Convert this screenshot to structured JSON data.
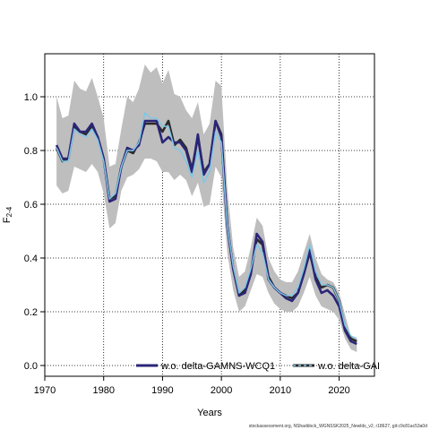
{
  "chart_data": {
    "type": "line",
    "xlabel": "Years",
    "ylabel_main": "F",
    "ylabel_sub": "2-4",
    "xlim": [
      1970,
      2026
    ],
    "ylim": [
      -0.04,
      1.16
    ],
    "x_ticks": [
      1970,
      1980,
      1990,
      2000,
      2010,
      2020
    ],
    "y_ticks": [
      0.0,
      0.2,
      0.4,
      0.6,
      0.8,
      1.0
    ],
    "y_tick_labels": [
      "0.0",
      "0.2",
      "0.4",
      "0.6",
      "0.8",
      "1.0"
    ],
    "grid": true,
    "legend_position": "bottom",
    "years": [
      1972,
      1973,
      1974,
      1975,
      1976,
      1977,
      1978,
      1979,
      1980,
      1981,
      1982,
      1983,
      1984,
      1985,
      1986,
      1987,
      1988,
      1989,
      1990,
      1991,
      1992,
      1993,
      1994,
      1995,
      1996,
      1997,
      1998,
      1999,
      2000,
      2001,
      2002,
      2003,
      2004,
      2005,
      2006,
      2007,
      2008,
      2009,
      2010,
      2011,
      2012,
      2013,
      2014,
      2015,
      2016,
      2017,
      2018,
      2019,
      2020,
      2021,
      2022,
      2023
    ],
    "band": {
      "color": "#bebebe",
      "upper": [
        1.0,
        0.92,
        0.93,
        1.06,
        1.03,
        1.02,
        1.07,
        1.0,
        0.92,
        0.74,
        0.75,
        0.88,
        1.0,
        0.98,
        1.03,
        1.12,
        1.09,
        1.11,
        1.05,
        1.1,
        1.01,
        1.0,
        0.95,
        0.92,
        0.98,
        0.86,
        0.9,
        1.06,
        1.04,
        0.66,
        0.44,
        0.33,
        0.35,
        0.44,
        0.55,
        0.52,
        0.4,
        0.35,
        0.32,
        0.31,
        0.31,
        0.35,
        0.42,
        0.49,
        0.4,
        0.34,
        0.32,
        0.31,
        0.27,
        0.19,
        0.11,
        0.1
      ],
      "lower": [
        0.67,
        0.64,
        0.65,
        0.74,
        0.73,
        0.72,
        0.75,
        0.72,
        0.64,
        0.51,
        0.53,
        0.65,
        0.7,
        0.71,
        0.73,
        0.77,
        0.77,
        0.76,
        0.72,
        0.72,
        0.69,
        0.71,
        0.69,
        0.63,
        0.68,
        0.59,
        0.6,
        0.74,
        0.7,
        0.42,
        0.28,
        0.2,
        0.22,
        0.28,
        0.34,
        0.33,
        0.27,
        0.23,
        0.21,
        0.2,
        0.2,
        0.22,
        0.27,
        0.33,
        0.26,
        0.22,
        0.21,
        0.2,
        0.17,
        0.1,
        0.06,
        0.05
      ]
    },
    "series": [
      {
        "name": "w.o. delta-GAMNS-WCQ1",
        "color": "#2b2577",
        "values": [
          0.82,
          0.77,
          0.77,
          0.9,
          0.87,
          0.87,
          0.9,
          0.85,
          0.77,
          0.61,
          0.62,
          0.74,
          0.81,
          0.8,
          0.82,
          0.91,
          0.91,
          0.91,
          0.83,
          0.85,
          0.83,
          0.83,
          0.8,
          0.72,
          0.86,
          0.71,
          0.75,
          0.91,
          0.85,
          0.52,
          0.36,
          0.26,
          0.27,
          0.34,
          0.49,
          0.46,
          0.32,
          0.29,
          0.27,
          0.25,
          0.24,
          0.27,
          0.34,
          0.43,
          0.32,
          0.27,
          0.28,
          0.26,
          0.22,
          0.13,
          0.09,
          0.08
        ]
      },
      {
        "name": "w.o. delta-GAI",
        "color": "#2a2a2a",
        "values": [
          0.81,
          0.76,
          0.77,
          0.89,
          0.87,
          0.86,
          0.89,
          0.85,
          0.77,
          0.62,
          0.63,
          0.74,
          0.8,
          0.79,
          0.83,
          0.9,
          0.9,
          0.9,
          0.87,
          0.91,
          0.82,
          0.84,
          0.81,
          0.73,
          0.85,
          0.72,
          0.75,
          0.91,
          0.86,
          0.52,
          0.36,
          0.26,
          0.28,
          0.35,
          0.47,
          0.45,
          0.33,
          0.29,
          0.27,
          0.26,
          0.25,
          0.27,
          0.34,
          0.42,
          0.33,
          0.29,
          0.3,
          0.29,
          0.24,
          0.14,
          0.1,
          0.09
        ]
      },
      {
        "name": "",
        "color": "#7fc6e8",
        "values": [
          0.81,
          0.76,
          0.76,
          0.88,
          0.86,
          0.85,
          0.88,
          0.84,
          0.76,
          0.62,
          0.64,
          0.74,
          0.8,
          0.8,
          0.83,
          0.94,
          0.92,
          0.92,
          0.89,
          0.89,
          0.81,
          0.8,
          0.76,
          0.7,
          0.8,
          0.68,
          0.72,
          0.87,
          0.83,
          0.52,
          0.37,
          0.27,
          0.29,
          0.36,
          0.45,
          0.42,
          0.32,
          0.29,
          0.27,
          0.26,
          0.26,
          0.29,
          0.36,
          0.45,
          0.35,
          0.3,
          0.3,
          0.29,
          0.24,
          0.15,
          0.11,
          0.1
        ]
      }
    ]
  },
  "footer_text": "stockassessment.org, NShaddock_WGNSSK2025_Newlds_v2, r18627, git:c9c81ac53a0d"
}
